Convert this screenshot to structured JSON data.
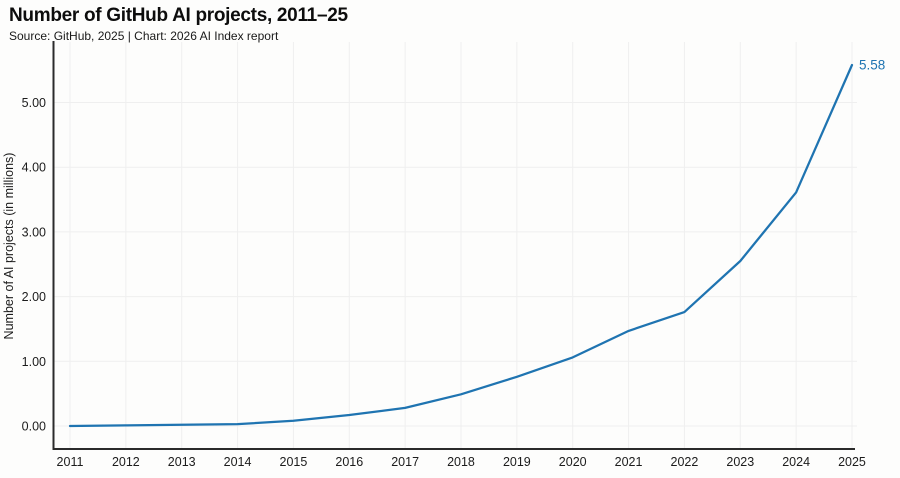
{
  "header": {
    "title": "Number of GitHub AI projects, 2011–25",
    "source_line": "Source: GitHub, 2025 | Chart: 2026 AI Index report"
  },
  "chart_data": {
    "type": "line",
    "title": "Number of GitHub AI projects, 2011–25",
    "xlabel": "",
    "ylabel": "Number of AI projects (in millions)",
    "categories": [
      2011,
      2012,
      2013,
      2014,
      2015,
      2016,
      2017,
      2018,
      2019,
      2020,
      2021,
      2022,
      2023,
      2024,
      2025
    ],
    "values": [
      0.0,
      0.01,
      0.02,
      0.03,
      0.08,
      0.17,
      0.28,
      0.49,
      0.76,
      1.06,
      1.47,
      1.76,
      2.55,
      3.61,
      5.58
    ],
    "x_tick_labels": [
      "2011",
      "2012",
      "2013",
      "2014",
      "2015",
      "2016",
      "2017",
      "2018",
      "2019",
      "2020",
      "2021",
      "2022",
      "2023",
      "2024",
      "2025"
    ],
    "y_ticks": [
      0,
      1,
      2,
      3,
      4,
      5
    ],
    "y_tick_labels": [
      "0.00",
      "1.00",
      "2.00",
      "3.00",
      "4.00",
      "5.00"
    ],
    "ylim": [
      0,
      5.7
    ],
    "grid": "both-light",
    "legend_position": "none",
    "end_label": "5.58",
    "colors": {
      "line": "#1f74b1",
      "end_label": "#1f74b1",
      "grid": "#efefef",
      "spine": "#2b2b2b",
      "tick_text": "#1c1c1c",
      "axis_title_text": "#1c1c1c"
    }
  }
}
